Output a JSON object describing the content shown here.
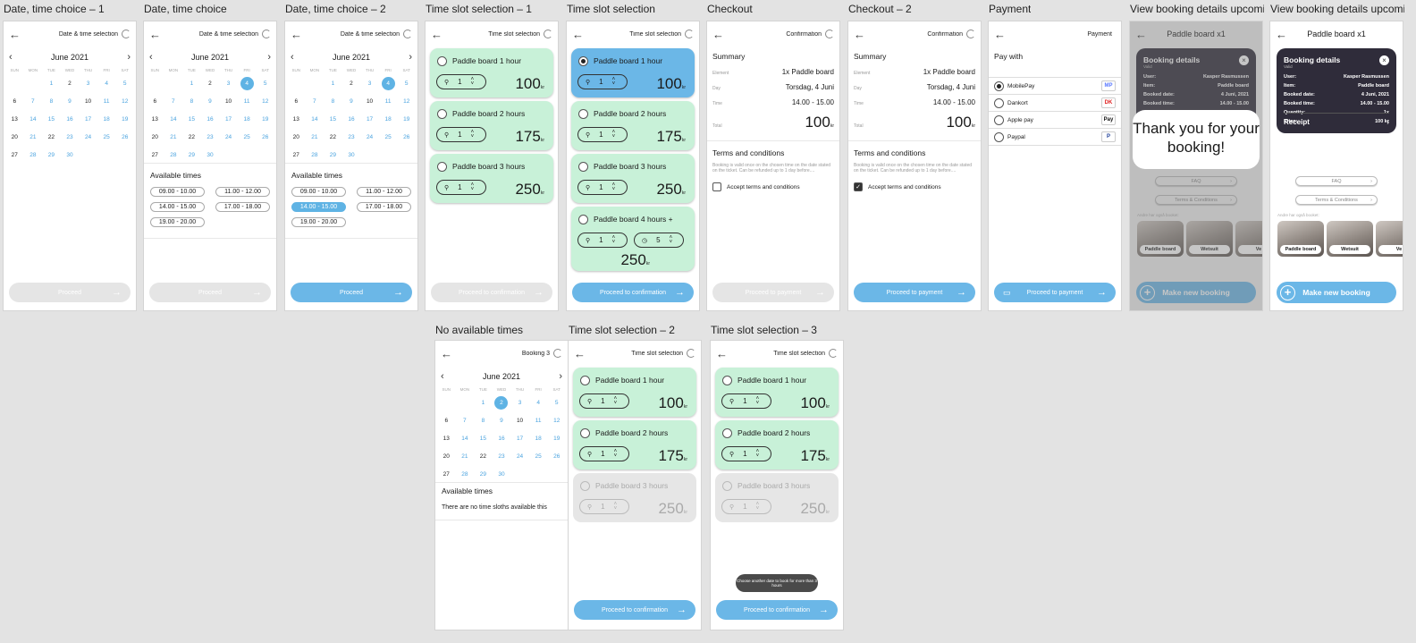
{
  "frame_labels": {
    "f1": "Date, time choice – 1",
    "f2": "Date, time choice",
    "f3": "Date, time choice – 2",
    "f4": "Time slot selection – 1",
    "f5": "Time slot selection",
    "f6": "Checkout",
    "f7": "Checkout – 2",
    "f8": "Payment",
    "f9": "View booking details upcomi...",
    "f10": "View booking details upcomi...",
    "f11": "No available times",
    "f12": "Time slot selection – 2",
    "f13": "Time slot selection – 3"
  },
  "titles": {
    "date_time": "Date & time selection",
    "time_slot": "Time slot selection",
    "confirmation": "Confirmation",
    "payment": "Payment",
    "booking": "Paddle board x1",
    "booking3": "Booking 3"
  },
  "calendar": {
    "month": "June 2021",
    "weekdays": [
      "SUN",
      "MON",
      "TUE",
      "WED",
      "THU",
      "FRI",
      "SAT"
    ]
  },
  "available_times_label": "Available times",
  "time_slots": [
    "09.00 - 10.00",
    "11.00 - 12.00",
    "14.00 - 15.00",
    "17.00 - 18.00",
    "19.00 - 20.00"
  ],
  "no_times_text": "There are no time sloths available this",
  "buttons": {
    "proceed": "Proceed",
    "proceed_confirmation": "Proceed to confirmation",
    "proceed_payment": "Proceed to payment",
    "make_new_booking": "Make new booking",
    "receipt": "Receipt",
    "faq": "FAQ",
    "terms": "Terms & Conditions"
  },
  "products": [
    {
      "name": "Paddle board 1 hour",
      "qty": "1",
      "price": "100",
      "unit": "kr"
    },
    {
      "name": "Paddle board 2 hours",
      "qty": "1",
      "price": "175",
      "unit": "kr"
    },
    {
      "name": "Paddle board 3 hours",
      "qty": "1",
      "price": "250",
      "unit": "kr"
    },
    {
      "name": "Paddle board 4 hours +",
      "qty": "1",
      "hours": "5",
      "price": "250",
      "unit": "kr"
    }
  ],
  "summary": {
    "heading": "Summary",
    "rows": [
      {
        "label": "Element",
        "value": "1x Paddle board"
      },
      {
        "label": "Day",
        "value": "Torsdag, 4 Juni"
      },
      {
        "label": "Time",
        "value": "14.00 - 15.00"
      }
    ],
    "total_label": "Total",
    "total_value": "100",
    "total_unit": "kr"
  },
  "terms": {
    "heading": "Terms and conditions",
    "body": "Booking is valid once on the chosen time on the date stated on the ticket. Can be refunded up to 1 day before....",
    "accept": "Accept terms and conditions"
  },
  "payment": {
    "heading": "Pay with",
    "options": [
      {
        "name": "MobilePay",
        "logo": "MP",
        "color": "#5a78ff"
      },
      {
        "name": "Dankort",
        "logo": "DK",
        "color": "#e02020"
      },
      {
        "name": "Apple pay",
        "logo": "Pay",
        "color": "#111111"
      },
      {
        "name": "Paypal",
        "logo": "P",
        "color": "#1f3f99"
      }
    ]
  },
  "booking_details": {
    "heading": "Booking details",
    "status": "Valid",
    "rows": [
      {
        "label": "User:",
        "value": "Kasper Rasmussen"
      },
      {
        "label": "Item:",
        "value": "Paddle board"
      },
      {
        "label": "Booked date:",
        "value": "4 Juni, 2021"
      },
      {
        "label": "Booked time:",
        "value": "14.00 - 15.00"
      },
      {
        "label": "Quantity:",
        "value": "1x"
      },
      {
        "label": "Price:",
        "value": "100 kr"
      }
    ],
    "thanks": "Thank you for your booking!",
    "others_label": "Andre har også booket:",
    "thumbs": [
      "Paddle board",
      "Wetsuit",
      "Ve"
    ]
  },
  "toast": "Choose another date to book for more than 3 hours"
}
